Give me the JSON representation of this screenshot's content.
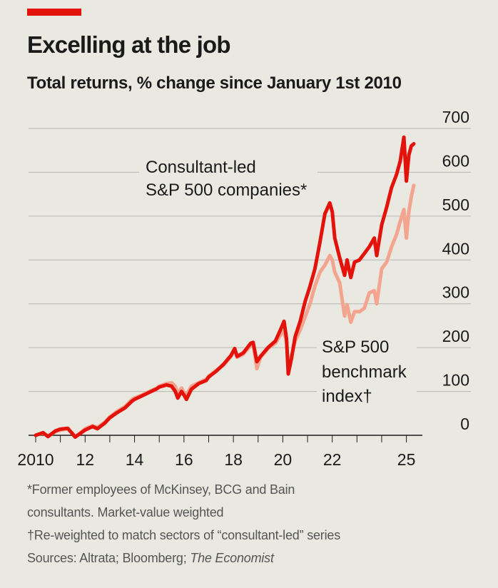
{
  "header": {
    "title": "Excelling at the job",
    "subtitle": "Total returns, % change since January 1st 2010"
  },
  "colors": {
    "accent": "#e3120b",
    "consultant": "#e3120b",
    "benchmark": "#f3a58f",
    "gridline": "#b8b8b1",
    "background": "#e9e9e2"
  },
  "chart_data": {
    "type": "line",
    "title": "Excelling at the job",
    "subtitle": "Total returns, % change since January 1st 2010",
    "xlabel": "",
    "ylabel": "",
    "x_range": [
      2010,
      2025.3
    ],
    "ylim": [
      0,
      700
    ],
    "yticks": [
      0,
      100,
      200,
      300,
      400,
      500,
      600,
      700
    ],
    "xticks": [
      {
        "value": 2010,
        "label": "2010"
      },
      {
        "value": 2012,
        "label": "12"
      },
      {
        "value": 2014,
        "label": "14"
      },
      {
        "value": 2016,
        "label": "16"
      },
      {
        "value": 2018,
        "label": "18"
      },
      {
        "value": 2020,
        "label": "20"
      },
      {
        "value": 2022,
        "label": "22"
      },
      {
        "value": 2025,
        "label": "25"
      }
    ],
    "grid": true,
    "series": [
      {
        "name": "S&P 500 benchmark index†",
        "label_lines": [
          "S&P 500",
          "benchmark",
          "index†"
        ],
        "color": "#f3a58f",
        "points": [
          [
            2010,
            0
          ],
          [
            2010.3,
            5
          ],
          [
            2010.5,
            -2
          ],
          [
            2010.8,
            8
          ],
          [
            2011,
            12
          ],
          [
            2011.3,
            15
          ],
          [
            2011.6,
            -2
          ],
          [
            2011.8,
            5
          ],
          [
            2012,
            15
          ],
          [
            2012.3,
            22
          ],
          [
            2012.5,
            18
          ],
          [
            2012.8,
            30
          ],
          [
            2013,
            42
          ],
          [
            2013.3,
            55
          ],
          [
            2013.6,
            65
          ],
          [
            2013.9,
            82
          ],
          [
            2014,
            85
          ],
          [
            2014.3,
            92
          ],
          [
            2014.6,
            100
          ],
          [
            2014.9,
            108
          ],
          [
            2015,
            112
          ],
          [
            2015.3,
            118
          ],
          [
            2015.5,
            120
          ],
          [
            2015.65,
            112
          ],
          [
            2015.75,
            95
          ],
          [
            2015.9,
            108
          ],
          [
            2016,
            98
          ],
          [
            2016.1,
            92
          ],
          [
            2016.3,
            112
          ],
          [
            2016.6,
            120
          ],
          [
            2016.9,
            128
          ],
          [
            2017,
            135
          ],
          [
            2017.3,
            148
          ],
          [
            2017.6,
            160
          ],
          [
            2017.9,
            180
          ],
          [
            2018.05,
            195
          ],
          [
            2018.15,
            178
          ],
          [
            2018.4,
            185
          ],
          [
            2018.7,
            205
          ],
          [
            2018.8,
            210
          ],
          [
            2018.95,
            152
          ],
          [
            2019.1,
            178
          ],
          [
            2019.4,
            198
          ],
          [
            2019.7,
            210
          ],
          [
            2019.9,
            228
          ],
          [
            2020.05,
            238
          ],
          [
            2020.15,
            212
          ],
          [
            2020.22,
            155
          ],
          [
            2020.35,
            180
          ],
          [
            2020.5,
            215
          ],
          [
            2020.7,
            240
          ],
          [
            2020.9,
            270
          ],
          [
            2021.1,
            300
          ],
          [
            2021.3,
            340
          ],
          [
            2021.5,
            372
          ],
          [
            2021.7,
            388
          ],
          [
            2021.9,
            410
          ],
          [
            2022,
            400
          ],
          [
            2022.1,
            372
          ],
          [
            2022.3,
            348
          ],
          [
            2022.5,
            272
          ],
          [
            2022.6,
            298
          ],
          [
            2022.75,
            258
          ],
          [
            2022.9,
            282
          ],
          [
            2023.1,
            282
          ],
          [
            2023.3,
            290
          ],
          [
            2023.5,
            325
          ],
          [
            2023.7,
            330
          ],
          [
            2023.8,
            300
          ],
          [
            2024,
            380
          ],
          [
            2024.2,
            395
          ],
          [
            2024.4,
            430
          ],
          [
            2024.6,
            458
          ],
          [
            2024.75,
            488
          ],
          [
            2024.9,
            515
          ],
          [
            2025,
            450
          ],
          [
            2025.1,
            510
          ],
          [
            2025.2,
            545
          ],
          [
            2025.3,
            570
          ]
        ]
      },
      {
        "name": "Consultant-led S&P 500 companies*",
        "label_lines": [
          "Consultant-led",
          "S&P 500 companies*"
        ],
        "color": "#e3120b",
        "points": [
          [
            2010,
            0
          ],
          [
            2010.3,
            6
          ],
          [
            2010.5,
            -3
          ],
          [
            2010.8,
            10
          ],
          [
            2011,
            14
          ],
          [
            2011.3,
            16
          ],
          [
            2011.6,
            -4
          ],
          [
            2011.8,
            4
          ],
          [
            2012,
            12
          ],
          [
            2012.3,
            20
          ],
          [
            2012.5,
            15
          ],
          [
            2012.8,
            28
          ],
          [
            2013,
            40
          ],
          [
            2013.3,
            52
          ],
          [
            2013.6,
            62
          ],
          [
            2013.9,
            78
          ],
          [
            2014,
            82
          ],
          [
            2014.3,
            90
          ],
          [
            2014.6,
            98
          ],
          [
            2014.9,
            106
          ],
          [
            2015,
            110
          ],
          [
            2015.3,
            115
          ],
          [
            2015.5,
            112
          ],
          [
            2015.65,
            100
          ],
          [
            2015.75,
            85
          ],
          [
            2015.9,
            100
          ],
          [
            2016,
            92
          ],
          [
            2016.1,
            82
          ],
          [
            2016.3,
            105
          ],
          [
            2016.6,
            118
          ],
          [
            2016.9,
            125
          ],
          [
            2017,
            133
          ],
          [
            2017.3,
            146
          ],
          [
            2017.6,
            162
          ],
          [
            2017.9,
            182
          ],
          [
            2018.05,
            198
          ],
          [
            2018.15,
            180
          ],
          [
            2018.4,
            188
          ],
          [
            2018.7,
            210
          ],
          [
            2018.8,
            212
          ],
          [
            2018.95,
            168
          ],
          [
            2019.1,
            180
          ],
          [
            2019.4,
            200
          ],
          [
            2019.7,
            215
          ],
          [
            2019.9,
            240
          ],
          [
            2020.05,
            260
          ],
          [
            2020.15,
            220
          ],
          [
            2020.22,
            140
          ],
          [
            2020.35,
            175
          ],
          [
            2020.5,
            225
          ],
          [
            2020.7,
            260
          ],
          [
            2020.9,
            305
          ],
          [
            2021.1,
            340
          ],
          [
            2021.3,
            380
          ],
          [
            2021.5,
            440
          ],
          [
            2021.7,
            505
          ],
          [
            2021.9,
            530
          ],
          [
            2022,
            510
          ],
          [
            2022.1,
            450
          ],
          [
            2022.3,
            405
          ],
          [
            2022.5,
            365
          ],
          [
            2022.6,
            400
          ],
          [
            2022.75,
            360
          ],
          [
            2022.9,
            395
          ],
          [
            2023.1,
            400
          ],
          [
            2023.3,
            415
          ],
          [
            2023.5,
            430
          ],
          [
            2023.7,
            450
          ],
          [
            2023.8,
            410
          ],
          [
            2024,
            480
          ],
          [
            2024.2,
            520
          ],
          [
            2024.4,
            565
          ],
          [
            2024.6,
            595
          ],
          [
            2024.75,
            625
          ],
          [
            2024.9,
            680
          ],
          [
            2025,
            580
          ],
          [
            2025.1,
            640
          ],
          [
            2025.2,
            660
          ],
          [
            2025.3,
            665
          ]
        ]
      }
    ],
    "annotations": [
      "Consultant-led S&P 500 companies*",
      "S&P 500 benchmark index†"
    ]
  },
  "footnotes": {
    "note1_line1": "*Former employees of McKinsey, BCG and Bain",
    "note1_line2": "consultants. Market-value weighted",
    "note2": "†Re-weighted to match sectors of “consultant-led” series",
    "sources_prefix": "Sources: Altrata; Bloomberg; ",
    "sources_italic": "The Economist"
  }
}
